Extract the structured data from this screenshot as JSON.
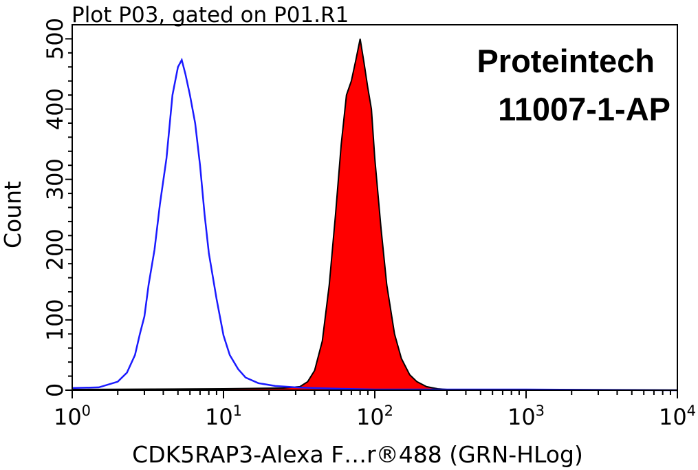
{
  "chart_data": {
    "type": "area",
    "title": "Plot P03, gated on P01.R1",
    "watermark": [
      "Proteintech",
      "11007-1-AP"
    ],
    "xlabel": "CDK5RAP3-Alexa F…r®488 (GRN-HLog)",
    "ylabel": "Count",
    "xscale": "log",
    "xlim": [
      1,
      10000
    ],
    "ylim": [
      0,
      520
    ],
    "yticks": [
      0,
      100,
      200,
      300,
      400,
      500
    ],
    "xticks": [
      {
        "base": "10",
        "exp": "0",
        "value": 1
      },
      {
        "base": "10",
        "exp": "1",
        "value": 10
      },
      {
        "base": "10",
        "exp": "2",
        "value": 100
      },
      {
        "base": "10",
        "exp": "3",
        "value": 1000
      },
      {
        "base": "10",
        "exp": "4",
        "value": 10000
      }
    ],
    "series": [
      {
        "color": "#1a1aff",
        "fill": "none",
        "x": [
          1.0,
          1.5,
          2.0,
          2.3,
          2.6,
          2.8,
          3.0,
          3.2,
          3.5,
          3.8,
          4.2,
          4.6,
          5.0,
          5.3,
          5.6,
          6.0,
          6.5,
          7.0,
          7.5,
          8.0,
          9.0,
          10.0,
          11.0,
          12.5,
          14.0,
          17.0,
          22.0,
          30.0,
          40.0,
          60.0,
          100.0,
          1000.0,
          10000.0
        ],
        "values": [
          3,
          4,
          12,
          25,
          50,
          80,
          105,
          150,
          200,
          265,
          330,
          420,
          460,
          470,
          450,
          420,
          380,
          320,
          250,
          195,
          130,
          78,
          50,
          30,
          18,
          10,
          6,
          4,
          3,
          2,
          1,
          1,
          0
        ]
      },
      {
        "color": "#ff0000",
        "fill": "#ff0000",
        "x": [
          1.0,
          10.0,
          25.0,
          32.0,
          36.0,
          40.0,
          45.0,
          50.0,
          55.0,
          60.0,
          65.0,
          70.0,
          75.0,
          80.0,
          85.0,
          90.0,
          95.0,
          100.0,
          110.0,
          120.0,
          135.0,
          150.0,
          170.0,
          190.0,
          220.0,
          260.0,
          300.0,
          1000.0,
          10000.0
        ],
        "values": [
          1,
          2,
          3,
          5,
          12,
          28,
          70,
          150,
          250,
          350,
          420,
          440,
          470,
          500,
          465,
          430,
          400,
          330,
          230,
          150,
          80,
          45,
          22,
          12,
          5,
          2,
          1,
          0,
          0
        ]
      }
    ]
  }
}
